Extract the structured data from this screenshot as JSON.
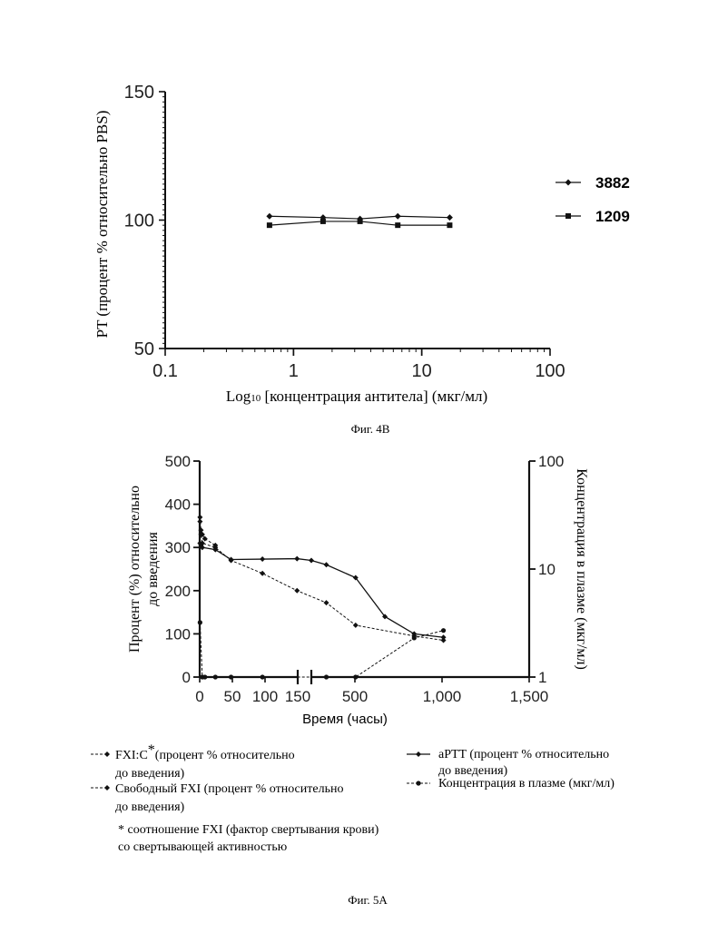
{
  "chart_data": [
    {
      "type": "line",
      "ylabel": "PT (процент % относительно PBS)",
      "xlabel_prefix": "Log",
      "xlabel_sub": "10",
      "xlabel_rest": " [концентрация антитела] (мкг/мл)",
      "x_scale": "log",
      "xlim": [
        0.1,
        100
      ],
      "ylim": [
        50,
        150
      ],
      "x_ticks": [
        "0.1",
        "1",
        "10",
        "100"
      ],
      "y_ticks": [
        "50",
        "100",
        "150"
      ],
      "legend_position": "right",
      "series": [
        {
          "name": "3882",
          "marker": "diamond",
          "x": [
            0.65,
            1.7,
            3.3,
            6.5,
            16.5
          ],
          "y": [
            101.5,
            101,
            100.5,
            101.5,
            101
          ]
        },
        {
          "name": "1209",
          "marker": "square",
          "x": [
            0.65,
            1.7,
            3.3,
            6.5,
            16.5
          ],
          "y": [
            98,
            99.5,
            99.5,
            98,
            98
          ]
        }
      ],
      "caption": "Фиг. 4В"
    },
    {
      "type": "line",
      "xlabel": "Время (часы)",
      "ylabel_left_line1": "Процент (%) относительно",
      "ylabel_left_line2": "до введения",
      "ylabel_right": "Концентрация в плазме (мкг/мл)",
      "x_ticks": [
        "0",
        "50",
        "100",
        "150",
        "500",
        "1,000",
        "1,500"
      ],
      "y_ticks_left": [
        "0",
        "100",
        "200",
        "300",
        "400",
        "500"
      ],
      "y_ticks_right": [
        "1",
        "10",
        "100"
      ],
      "ylim_left": [
        0,
        500
      ],
      "ylim_right": [
        1,
        100
      ],
      "x_axis_break": [
        150,
        250
      ],
      "series": [
        {
          "name": "FXI:C",
          "axis": "left",
          "dash": true,
          "marker": "diamond",
          "x": [
            0.5,
            2,
            4,
            8,
            24
          ],
          "y": [
            360,
            340,
            330,
            320,
            305
          ]
        },
        {
          "name": "Свободный FXI",
          "axis": "left",
          "dash": true,
          "marker": "diamond",
          "x": [
            0.5,
            2,
            4,
            24,
            48,
            96,
            168,
            336,
            504,
            840,
            1008
          ],
          "y": [
            370,
            330,
            310,
            300,
            270,
            240,
            200,
            172,
            120,
            95,
            85
          ]
        },
        {
          "name": "aPTT",
          "axis": "left",
          "dash": false,
          "marker": "diamond",
          "x": [
            0.5,
            2,
            4,
            24,
            48,
            96,
            168,
            250,
            336,
            504,
            672,
            840,
            1008
          ],
          "y": [
            310,
            305,
            300,
            295,
            272,
            273,
            274,
            270,
            260,
            230,
            140,
            100,
            92
          ]
        },
        {
          "name": "Концентрация в плазме",
          "axis": "right",
          "dash": true,
          "marker": "circle",
          "x": [
            0.5,
            4,
            8,
            24,
            48,
            96,
            336,
            504,
            840,
            1008
          ],
          "y": [
            3.2,
            1,
            1,
            1,
            1,
            1,
            1,
            1,
            2.3,
            2.7
          ]
        }
      ],
      "legend": {
        "fxic_main": "FXI:C",
        "fxic_star": "*",
        "fxic_rest": "(процент % относительно",
        "fxic_line2": "до введения)",
        "aptt_line1": "aPTT (процент % относительно",
        "aptt_line2": "до введения)",
        "free_line1": "Свободный FXI (процент % относительно",
        "free_line2": "до введения)",
        "conc_line1": "Концентрация в плазме (мкг/мл)",
        "note_line1": "* соотношение FXI (фактор свертывания крови)",
        "note_line2": "со свертывающей активностью"
      },
      "caption": "Фиг. 5А"
    }
  ]
}
